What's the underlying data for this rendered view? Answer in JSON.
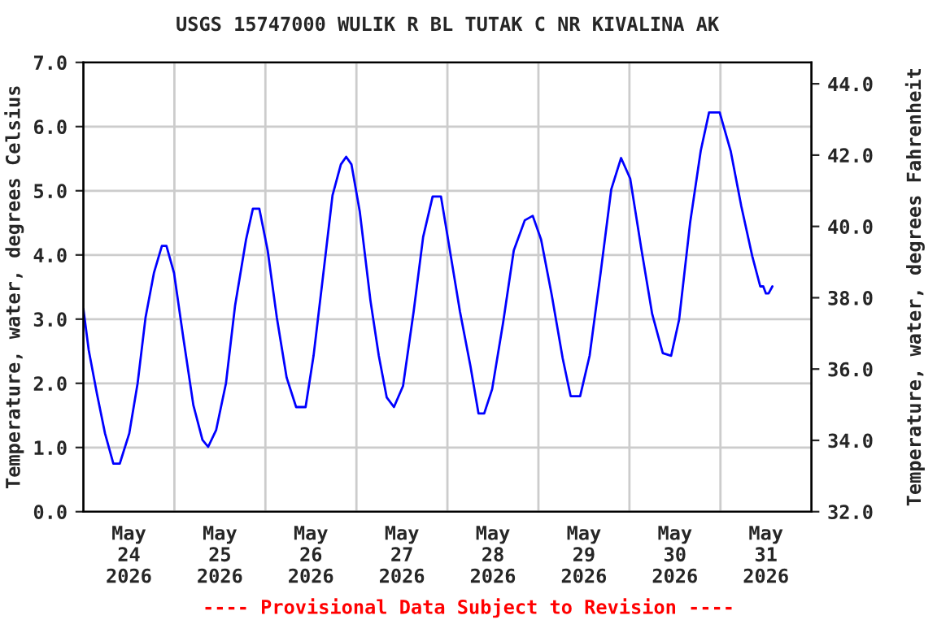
{
  "chart_data": {
    "type": "line",
    "title": "USGS 15747000 WULIK R BL TUTAK C NR KIVALINA AK",
    "ylabel": "Temperature, water, degrees Celsius",
    "y2label": "Temperature, water, degrees Fahrenheit",
    "annotations": [
      "---- Provisional Data Subject to Revision ----"
    ],
    "xlim": [
      "2026-05-24T00:00",
      "2026-06-01T00:00"
    ],
    "xticks": [
      {
        "value": "2026-05-24T12:00",
        "label": "May\n24\n2026"
      },
      {
        "value": "2026-05-25T00:00",
        "label": null
      },
      {
        "value": "2026-05-25T12:00",
        "label": "May\n25\n2026"
      },
      {
        "value": "2026-05-26T00:00",
        "label": null
      },
      {
        "value": "2026-05-26T12:00",
        "label": "May\n26\n2026"
      },
      {
        "value": "2026-05-27T00:00",
        "label": null
      },
      {
        "value": "2026-05-27T12:00",
        "label": "May\n27\n2026"
      },
      {
        "value": "2026-05-28T00:00",
        "label": null
      },
      {
        "value": "2026-05-28T12:00",
        "label": "May\n28\n2026"
      },
      {
        "value": "2026-05-29T00:00",
        "label": null
      },
      {
        "value": "2026-05-29T12:00",
        "label": "May\n29\n2026"
      },
      {
        "value": "2026-05-30T00:00",
        "label": null
      },
      {
        "value": "2026-05-30T12:00",
        "label": "May\n30\n2026"
      },
      {
        "value": "2026-05-31T00:00",
        "label": null
      },
      {
        "value": "2026-05-31T12:00",
        "label": "May\n31\n2026"
      }
    ],
    "ylim": [
      0,
      7
    ],
    "yticks": [
      {
        "value": 0,
        "label": "0.0"
      },
      {
        "value": 1,
        "label": "1.0"
      },
      {
        "value": 2,
        "label": "2.0"
      },
      {
        "value": 3,
        "label": "3.0"
      },
      {
        "value": 4,
        "label": "4.0"
      },
      {
        "value": 5,
        "label": "5.0"
      },
      {
        "value": 6,
        "label": "6.0"
      },
      {
        "value": 7,
        "label": "7.0"
      }
    ],
    "y2lim": [
      32,
      44.6
    ],
    "y2ticks": [
      {
        "value": 32,
        "label": "32.0"
      },
      {
        "value": 34,
        "label": "34.0"
      },
      {
        "value": 36,
        "label": "36.0"
      },
      {
        "value": 38,
        "label": "38.0"
      },
      {
        "value": 40,
        "label": "40.0"
      },
      {
        "value": 42,
        "label": "42.0"
      },
      {
        "value": 44,
        "label": "44.0"
      }
    ],
    "grid": true,
    "series": [
      {
        "color": "#0000ff",
        "x": [
          "2026-05-24T00:00",
          "2026-05-24T01:24",
          "2026-05-24T03:36",
          "2026-05-24T05:42",
          "2026-05-24T07:54",
          "2026-05-24T09:36",
          "2026-05-24T12:06",
          "2026-05-24T14:18",
          "2026-05-24T16:24",
          "2026-05-24T18:36",
          "2026-05-24T20:42",
          "2026-05-24T21:54",
          "2026-05-24T23:54",
          "2026-05-25T02:24",
          "2026-05-25T05:00",
          "2026-05-25T07:24",
          "2026-05-25T08:54",
          "2026-05-25T11:00",
          "2026-05-25T13:36",
          "2026-05-25T16:00",
          "2026-05-25T18:54",
          "2026-05-25T20:42",
          "2026-05-25T22:24",
          "2026-05-26T00:36",
          "2026-05-26T03:00",
          "2026-05-26T05:36",
          "2026-05-26T08:06",
          "2026-05-26T10:36",
          "2026-05-26T12:42",
          "2026-05-26T15:18",
          "2026-05-26T17:42",
          "2026-05-26T19:54",
          "2026-05-26T21:18",
          "2026-05-26T22:42",
          "2026-05-27T00:54",
          "2026-05-27T03:42",
          "2026-05-27T05:54",
          "2026-05-27T08:00",
          "2026-05-27T09:54",
          "2026-05-27T12:18",
          "2026-05-27T15:06",
          "2026-05-27T17:36",
          "2026-05-27T20:06",
          "2026-05-27T22:18",
          "2026-05-28T00:24",
          "2026-05-28T03:18",
          "2026-05-28T06:06",
          "2026-05-28T08:12",
          "2026-05-28T09:42",
          "2026-05-28T11:48",
          "2026-05-28T14:42",
          "2026-05-28T17:30",
          "2026-05-28T20:24",
          "2026-05-28T22:30",
          "2026-05-29T00:42",
          "2026-05-29T03:30",
          "2026-05-29T06:24",
          "2026-05-29T08:30",
          "2026-05-29T11:00",
          "2026-05-29T13:30",
          "2026-05-29T16:24",
          "2026-05-29T19:12",
          "2026-05-29T21:48",
          "2026-05-30T00:12",
          "2026-05-30T03:06",
          "2026-05-30T06:00",
          "2026-05-30T08:48",
          "2026-05-30T11:00",
          "2026-05-30T13:06",
          "2026-05-30T16:00",
          "2026-05-30T18:48",
          "2026-05-30T21:00",
          "2026-05-30T23:48",
          "2026-05-31T02:42",
          "2026-05-31T05:30",
          "2026-05-31T08:24",
          "2026-05-31T10:30",
          "2026-05-31T11:18",
          "2026-05-31T12:00",
          "2026-05-31T12:42",
          "2026-05-31T13:42"
        ],
        "values": [
          3.16,
          2.52,
          1.83,
          1.22,
          0.75,
          0.75,
          1.22,
          2.0,
          3.03,
          3.72,
          4.14,
          4.14,
          3.72,
          2.69,
          1.66,
          1.12,
          1.01,
          1.27,
          2.0,
          3.21,
          4.24,
          4.72,
          4.72,
          4.07,
          3.03,
          2.09,
          1.63,
          1.63,
          2.43,
          3.72,
          4.93,
          5.41,
          5.53,
          5.41,
          4.67,
          3.29,
          2.43,
          1.78,
          1.63,
          1.96,
          3.12,
          4.28,
          4.91,
          4.91,
          4.16,
          3.12,
          2.26,
          1.53,
          1.53,
          1.91,
          2.95,
          4.07,
          4.54,
          4.61,
          4.24,
          3.38,
          2.39,
          1.8,
          1.8,
          2.43,
          3.72,
          5.02,
          5.51,
          5.19,
          4.11,
          3.08,
          2.47,
          2.43,
          2.99,
          4.5,
          5.62,
          6.22,
          6.22,
          5.62,
          4.76,
          3.98,
          3.51,
          3.51,
          3.4,
          3.4,
          3.51
        ]
      }
    ]
  }
}
